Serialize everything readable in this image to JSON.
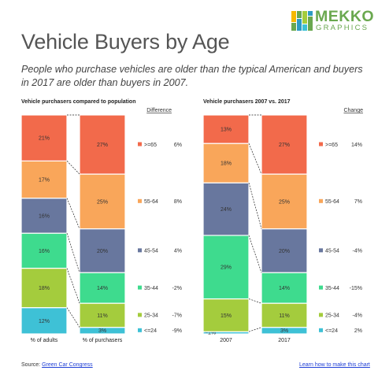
{
  "title": "Vehicle Buyers by Age",
  "subtitle": "People who purchase vehicles are older than the typical American and buyers in 2017 are older than buyers in 2007.",
  "logo": {
    "name": "MEKKO",
    "sub": "GRAPHICS"
  },
  "source": {
    "label": "Source:",
    "link": "Green Car Congress"
  },
  "learn_link": "Learn how to make this chart",
  "colors": {
    ">=65": "#f26a4b",
    "55-64": "#f9a65a",
    "45-54": "#68779e",
    "35-44": "#3edb8e",
    "25-34": "#a4cc3d",
    "<=24": "#3ec1d6"
  },
  "chart_data": [
    {
      "type": "bar",
      "stacked": true,
      "normalized": true,
      "title": "Vehicle purchasers compared to population",
      "categories": [
        "% of adults",
        "% of purchasers"
      ],
      "series": [
        {
          "name": "<=24",
          "values": [
            12,
            3
          ]
        },
        {
          "name": "25-34",
          "values": [
            18,
            11
          ]
        },
        {
          "name": "35-44",
          "values": [
            16,
            14
          ]
        },
        {
          "name": "45-54",
          "values": [
            16,
            20
          ]
        },
        {
          "name": "55-64",
          "values": [
            17,
            25
          ]
        },
        {
          "name": ">=65",
          "values": [
            21,
            27
          ]
        }
      ],
      "labels": [
        [
          "12%",
          "3%"
        ],
        [
          "18%",
          "11%"
        ],
        [
          "16%",
          "14%"
        ],
        [
          "16%",
          "20%"
        ],
        [
          "17%",
          "25%"
        ],
        [
          "21%",
          "27%"
        ]
      ],
      "extra_header": "Difference",
      "extra_values": [
        "-9%",
        "-7%",
        "-2%",
        "4%",
        "8%",
        "6%"
      ]
    },
    {
      "type": "bar",
      "stacked": true,
      "normalized": true,
      "title": "Vehicle purchasers 2007 vs. 2017",
      "categories": [
        "2007",
        "2017"
      ],
      "series": [
        {
          "name": "<=24",
          "values": [
            1,
            3
          ]
        },
        {
          "name": "25-34",
          "values": [
            15,
            11
          ]
        },
        {
          "name": "35-44",
          "values": [
            29,
            14
          ]
        },
        {
          "name": "45-54",
          "values": [
            24,
            20
          ]
        },
        {
          "name": "55-64",
          "values": [
            18,
            25
          ]
        },
        {
          "name": ">=65",
          "values": [
            13,
            27
          ]
        }
      ],
      "labels": [
        [
          "~1%",
          "3%"
        ],
        [
          "15%",
          "11%"
        ],
        [
          "29%",
          "14%"
        ],
        [
          "24%",
          "20%"
        ],
        [
          "18%",
          "25%"
        ],
        [
          "13%",
          "27%"
        ]
      ],
      "extra_header": "Change",
      "extra_values": [
        "2%",
        "-4%",
        "-15%",
        "-4%",
        "7%",
        "14%"
      ]
    }
  ]
}
